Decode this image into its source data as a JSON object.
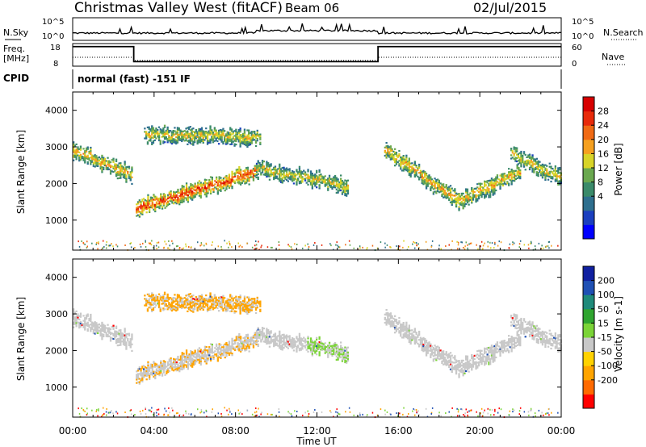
{
  "header": {
    "station": "Christmas Valley West (fitACF)",
    "beam": "Beam 06",
    "date": "02/Jul/2015"
  },
  "noise_panel": {
    "left_label": "N.Sky",
    "right_label": "N.Search",
    "left_ticks": [
      "10^5",
      "10^0"
    ],
    "right_ticks": [
      "10^5",
      "10^0"
    ]
  },
  "freq_panel": {
    "left_label_1": "Freq.",
    "left_label_2": "[MHz]",
    "right_label": "Nave",
    "left_ticks": [
      "18",
      "8"
    ],
    "right_ticks": [
      "60",
      "0"
    ]
  },
  "cpid": {
    "label": "CPID",
    "mode": "normal (fast) -151 IF"
  },
  "x_axis": {
    "label": "Time UT",
    "ticks": [
      "00:00",
      "04:00",
      "08:00",
      "12:00",
      "16:00",
      "20:00",
      "00:00"
    ]
  },
  "range_axis": {
    "label": "Slant Range [km]",
    "ticks": [
      "4000",
      "3000",
      "2000",
      "1000"
    ]
  },
  "power_scale": {
    "label": "Power [dB]",
    "ticks": [
      "28",
      "24",
      "20",
      "16",
      "12",
      "8",
      "4"
    ],
    "colors": [
      "#0000ff",
      "#1b3fbf",
      "#2e6f8e",
      "#3a8a6a",
      "#6aa84f",
      "#d8d428",
      "#f5a020",
      "#f06a14",
      "#e82a0a",
      "#d70000"
    ]
  },
  "velocity_scale": {
    "label": "Velocity [m s-1]",
    "ticks": [
      "200",
      "100",
      "50",
      "15",
      "-15",
      "-50",
      "-100",
      "-200"
    ],
    "colors": [
      "#ff0000",
      "#ff6a00",
      "#ffa400",
      "#ffd200",
      "#c8c8c8",
      "#7bd437",
      "#2fa52f",
      "#1f8a7a",
      "#1f50b4",
      "#1020a0"
    ]
  },
  "chart_data": {
    "type": "heatmap",
    "title": "Christmas Valley West (fitACF)  Beam 06  02/Jul/2015",
    "xlabel": "Time UT",
    "ylabel": "Slant Range [km]",
    "x_range_hours": [
      0,
      24
    ],
    "y_range_km": [
      180,
      4500
    ],
    "noise_sky_level": "10^0 to 10^5 (mostly near 10^1)",
    "frequency_mhz": {
      "segments": [
        {
          "start_h": 0.0,
          "end_h": 3.0,
          "value": 18
        },
        {
          "start_h": 3.0,
          "end_h": 15.0,
          "value": 8
        },
        {
          "start_h": 15.0,
          "end_h": 24.0,
          "value": 18
        }
      ]
    },
    "power_db_range": [
      0,
      30
    ],
    "velocity_range": [
      -250,
      250
    ],
    "echo_bands": [
      {
        "name": "band_a",
        "hours": [
          0.0,
          2.9
        ],
        "range_km": [
          2900,
          2200
        ],
        "power_db": 20
      },
      {
        "name": "band_b",
        "hours": [
          3.1,
          9.0
        ],
        "range_km": [
          1300,
          2300
        ],
        "power_db": 26
      },
      {
        "name": "band_c",
        "hours": [
          3.5,
          9.2
        ],
        "range_km": [
          3300,
          3250
        ],
        "power_db": 18
      },
      {
        "name": "band_d",
        "hours": [
          9.0,
          13.5
        ],
        "range_km": [
          2400,
          1900
        ],
        "power_db": 18
      },
      {
        "name": "band_e",
        "hours": [
          15.3,
          19.0
        ],
        "range_km": [
          2900,
          1500
        ],
        "power_db": 20
      },
      {
        "name": "band_f",
        "hours": [
          19.0,
          22.0
        ],
        "range_km": [
          1500,
          2300
        ],
        "power_db": 20
      },
      {
        "name": "band_g",
        "hours": [
          21.5,
          24.0
        ],
        "range_km": [
          2800,
          2100
        ],
        "power_db": 18
      }
    ]
  }
}
